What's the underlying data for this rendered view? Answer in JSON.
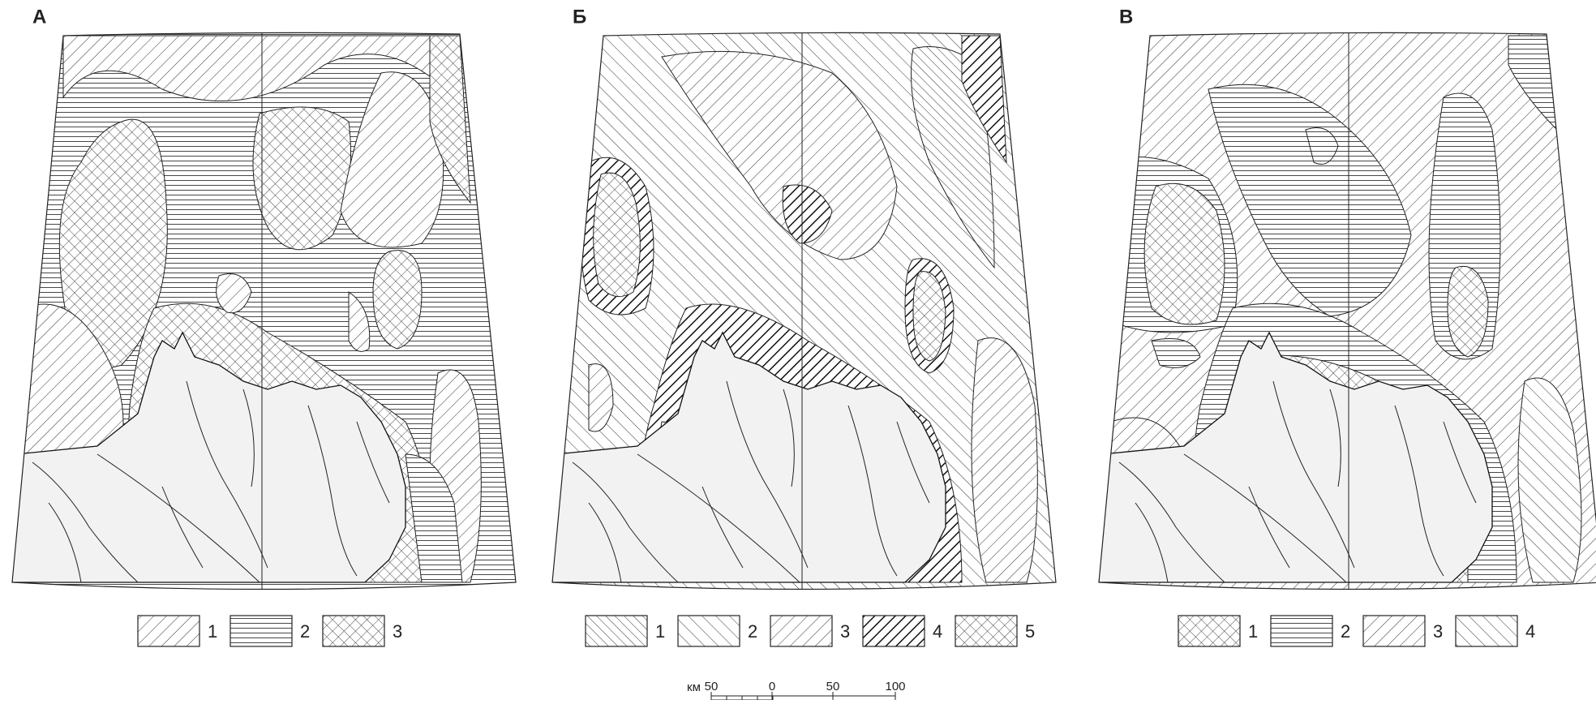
{
  "panels": [
    {
      "label": "А",
      "legend": [
        "1",
        "2",
        "3"
      ]
    },
    {
      "label": "Б",
      "legend": [
        "1",
        "2",
        "3",
        "4",
        "5"
      ]
    },
    {
      "label": "В",
      "legend": [
        "1",
        "2",
        "3",
        "4"
      ]
    }
  ],
  "scale_bar": {
    "unit": "км",
    "ticks": [
      "50",
      "0",
      "50",
      "100"
    ]
  }
}
